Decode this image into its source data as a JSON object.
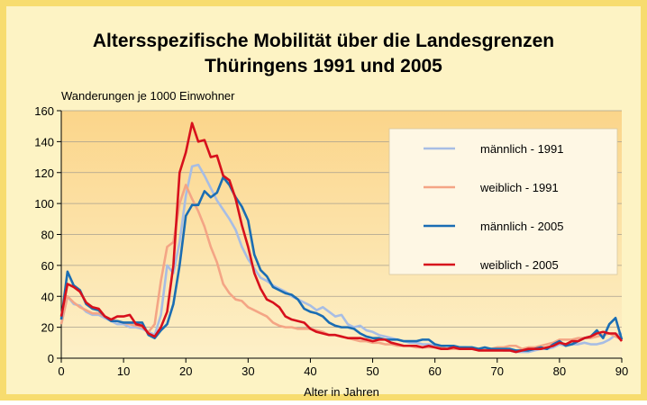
{
  "chart_data": {
    "type": "line",
    "title": [
      "Altersspezifische Mobilität über die Landesgrenzen",
      "Thüringens 1991 und 2005"
    ],
    "ylabel": "Wanderungen je 1000 Einwohner",
    "xlabel": "Alter in Jahren",
    "x": [
      0,
      1,
      2,
      3,
      4,
      5,
      6,
      7,
      8,
      9,
      10,
      11,
      12,
      13,
      14,
      15,
      16,
      17,
      18,
      19,
      20,
      21,
      22,
      23,
      24,
      25,
      26,
      27,
      28,
      29,
      30,
      31,
      32,
      33,
      34,
      35,
      36,
      37,
      38,
      39,
      40,
      41,
      42,
      43,
      44,
      45,
      46,
      47,
      48,
      49,
      50,
      51,
      52,
      53,
      54,
      55,
      56,
      57,
      58,
      59,
      60,
      61,
      62,
      63,
      64,
      65,
      66,
      67,
      68,
      69,
      70,
      71,
      72,
      73,
      74,
      75,
      76,
      77,
      78,
      79,
      80,
      81,
      82,
      83,
      84,
      85,
      86,
      87,
      88,
      89,
      90
    ],
    "xlim": [
      0,
      90
    ],
    "xticks": [
      0,
      10,
      20,
      30,
      40,
      50,
      60,
      70,
      80,
      90
    ],
    "ylim": [
      0,
      160
    ],
    "yticks": [
      0,
      20,
      40,
      60,
      80,
      100,
      120,
      140,
      160
    ],
    "grid": true,
    "series": [
      {
        "name": "männlich - 1991",
        "color": "#a7bde4",
        "values": [
          22,
          40,
          35,
          34,
          30,
          28,
          28,
          26,
          24,
          22,
          22,
          20,
          20,
          19,
          17,
          15,
          28,
          60,
          55,
          75,
          105,
          124,
          125,
          118,
          110,
          102,
          96,
          90,
          83,
          72,
          64,
          58,
          52,
          50,
          47,
          45,
          43,
          40,
          38,
          36,
          34,
          31,
          33,
          30,
          27,
          28,
          22,
          20,
          21,
          18,
          17,
          15,
          14,
          13,
          12,
          11,
          10,
          10,
          9,
          9,
          8,
          8,
          8,
          7,
          7,
          7,
          6,
          6,
          6,
          6,
          6,
          5,
          5,
          4,
          4,
          4,
          5,
          6,
          6,
          7,
          9,
          8,
          9,
          9,
          10,
          9,
          9,
          10,
          12,
          15,
          16
        ]
      },
      {
        "name": "weiblich - 1991",
        "color": "#f4a585",
        "values": [
          22,
          40,
          36,
          33,
          31,
          29,
          29,
          27,
          25,
          24,
          23,
          22,
          21,
          20,
          17,
          22,
          50,
          72,
          75,
          100,
          112,
          103,
          95,
          85,
          72,
          62,
          48,
          42,
          38,
          37,
          33,
          31,
          29,
          27,
          23,
          21,
          20,
          20,
          19,
          19,
          19,
          18,
          17,
          15,
          15,
          14,
          13,
          12,
          11,
          11,
          10,
          10,
          9,
          9,
          8,
          8,
          8,
          7,
          7,
          7,
          7,
          7,
          6,
          6,
          6,
          6,
          6,
          6,
          6,
          6,
          7,
          7,
          8,
          8,
          6,
          7,
          7,
          8,
          9,
          10,
          12,
          12,
          12,
          13,
          13,
          13,
          14,
          15,
          16,
          14,
          12
        ]
      },
      {
        "name": "männlich - 2005",
        "color": "#1a6db3",
        "values": [
          25,
          56,
          47,
          44,
          35,
          32,
          31,
          27,
          24,
          24,
          23,
          23,
          23,
          23,
          15,
          13,
          18,
          22,
          35,
          60,
          92,
          99,
          99,
          108,
          104,
          107,
          117,
          112,
          104,
          98,
          89,
          67,
          57,
          53,
          46,
          44,
          42,
          41,
          38,
          32,
          30,
          29,
          27,
          23,
          21,
          20,
          20,
          19,
          16,
          14,
          13,
          13,
          12,
          12,
          12,
          11,
          11,
          11,
          12,
          12,
          9,
          8,
          8,
          8,
          7,
          7,
          7,
          6,
          7,
          6,
          6,
          6,
          6,
          5,
          5,
          5,
          6,
          7,
          6,
          9,
          11,
          8,
          9,
          11,
          13,
          14,
          18,
          13,
          22,
          26,
          12
        ]
      },
      {
        "name": "weiblich - 2005",
        "color": "#d7101c",
        "values": [
          27,
          48,
          46,
          43,
          36,
          33,
          32,
          27,
          25,
          27,
          27,
          28,
          22,
          21,
          16,
          14,
          20,
          30,
          60,
          120,
          133,
          152,
          140,
          141,
          130,
          131,
          118,
          115,
          103,
          86,
          72,
          55,
          45,
          38,
          36,
          33,
          27,
          25,
          24,
          23,
          19,
          17,
          16,
          15,
          15,
          14,
          13,
          13,
          13,
          12,
          11,
          12,
          12,
          10,
          9,
          8,
          8,
          8,
          7,
          8,
          7,
          6,
          6,
          7,
          6,
          6,
          6,
          5,
          5,
          5,
          5,
          5,
          5,
          4,
          5,
          6,
          6,
          6,
          7,
          8,
          10,
          9,
          11,
          11,
          13,
          14,
          16,
          17,
          16,
          16,
          11
        ]
      }
    ]
  }
}
